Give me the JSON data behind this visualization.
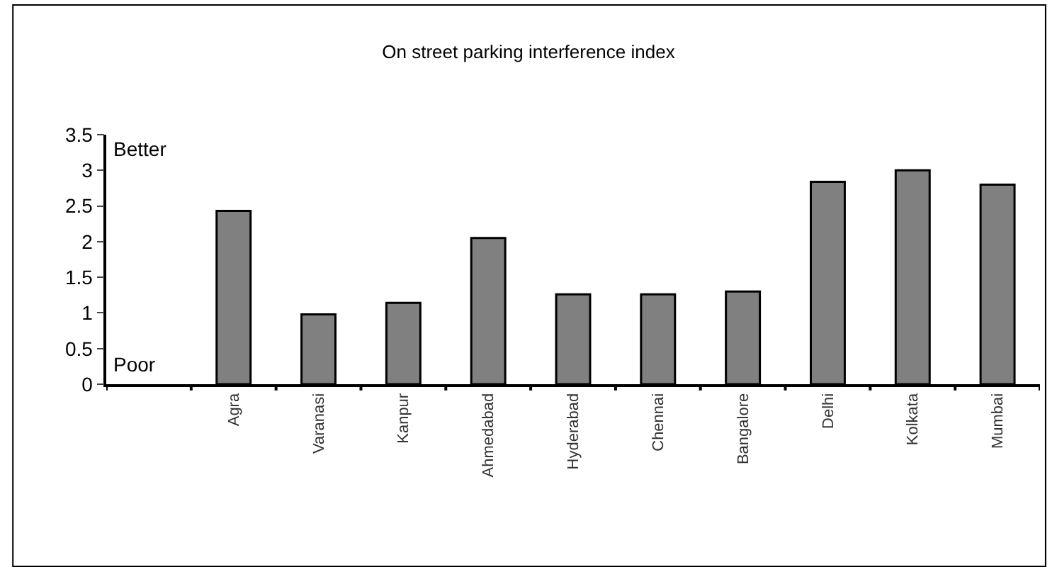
{
  "chart_data": {
    "type": "bar",
    "title": "On street parking interference index",
    "categories": [
      null,
      "Agra",
      "Varanasi",
      "Kanpur",
      "Ahmedabad",
      "Hyderabad",
      "Chennai",
      "Bangalore",
      "Delhi",
      "Kolkata",
      "Mumbai"
    ],
    "values": [
      null,
      2.43,
      0.98,
      1.14,
      2.05,
      1.26,
      1.26,
      1.3,
      2.84,
      3.0,
      2.8
    ],
    "color": "#808080",
    "ylim": [
      0,
      3.5
    ],
    "yticks": [
      0,
      0.5,
      1,
      1.5,
      2,
      2.5,
      3,
      3.5
    ],
    "annotations": [
      "Better",
      "Poor"
    ],
    "grid": false
  }
}
